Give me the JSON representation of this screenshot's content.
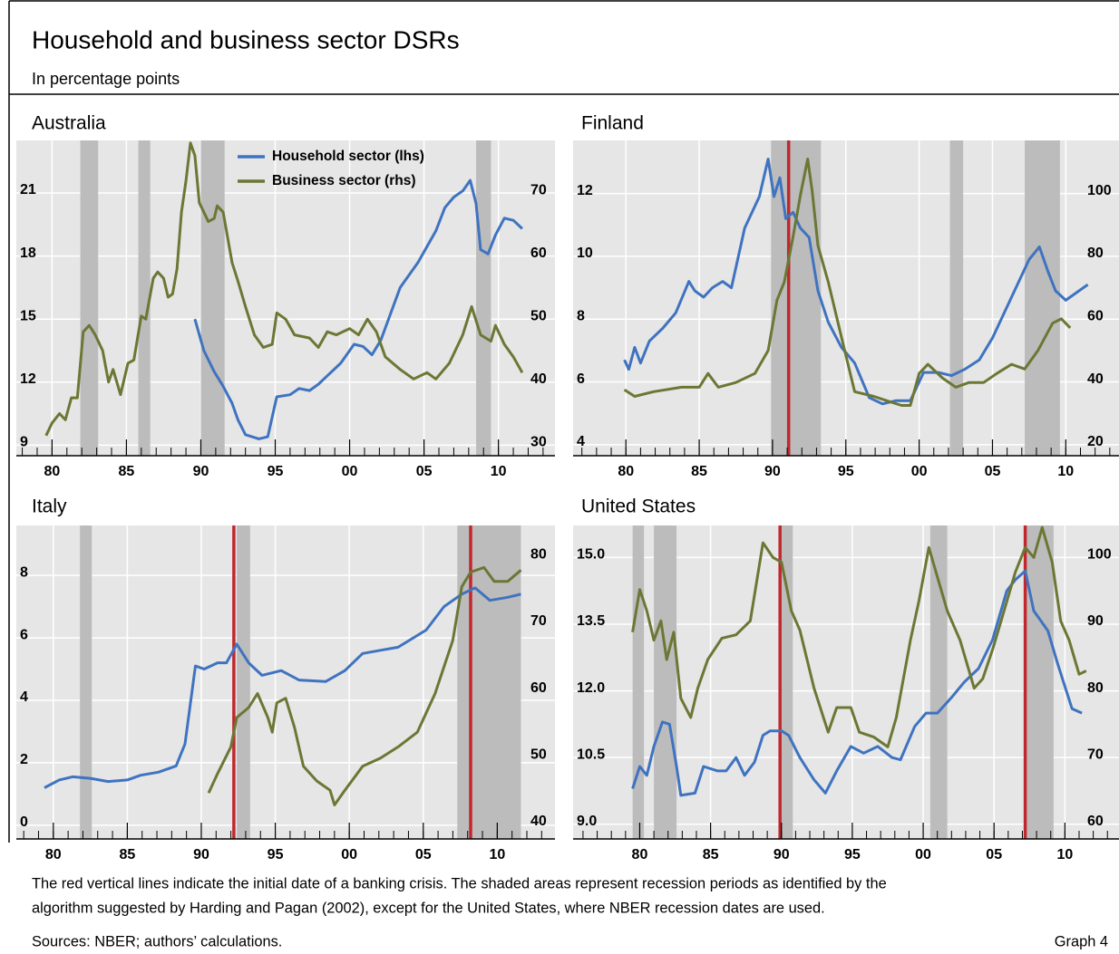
{
  "header": {
    "title": "Household and business sector DSRs",
    "subtitle": "In percentage points"
  },
  "footer": {
    "note_lines": [
      "The red vertical lines indicate the initial date of a banking crisis. The shaded areas represent recession periods as identified by the",
      "algorithm suggested by Harding and Pagan (2002), except for the United States, where NBER recession dates are used."
    ],
    "sources": "Sources: NBER; authors’ calculations.",
    "graph": "Graph 4"
  },
  "chart_data": [
    {
      "type": "line",
      "title": "Australia",
      "legend": "top",
      "grid": true,
      "xlim": [
        1977.6,
        2013.8
      ],
      "xticks": [
        {
          "value": 1980,
          "label": "80"
        },
        {
          "value": 1985,
          "label": "85"
        },
        {
          "value": 1990,
          "label": "90"
        },
        {
          "value": 1995,
          "label": "95"
        },
        {
          "value": 2000,
          "label": "00"
        },
        {
          "value": 2005,
          "label": "05"
        },
        {
          "value": 2010,
          "label": "10"
        }
      ],
      "ylim": [
        8.5,
        23.5
      ],
      "yticks": [
        9,
        12,
        15,
        18,
        21
      ],
      "y2lim": [
        28.3,
        78.4
      ],
      "y2ticks": [
        30,
        40,
        50,
        60,
        70
      ],
      "shading": [
        [
          1981.9,
          1983.1
        ],
        [
          1985.8,
          1986.6
        ],
        [
          1990,
          1991.6
        ],
        [
          2008.5,
          2009.5
        ]
      ],
      "crisis_dates": [],
      "series": [
        {
          "name": "Household sector (lhs)",
          "color": "#3f73c0",
          "x": [
            1989.6,
            1990.2,
            1990.9,
            1991.5,
            1992.1,
            1992.5,
            1993,
            1993.9,
            1994.5,
            1995.1,
            1996,
            1996.6,
            1997.3,
            1997.9,
            1998.5,
            1999.4,
            2000.3,
            2000.9,
            2001.5,
            2002.1,
            2003.4,
            2004.6,
            2005.8,
            2006.4,
            2007,
            2007.6,
            2008.1,
            2008.5,
            2008.8,
            2009.3,
            2009.8,
            2010.4,
            2011,
            2011.6
          ],
          "values": [
            15,
            13.5,
            12.5,
            11.8,
            11,
            10.2,
            9.5,
            9.3,
            9.4,
            11.3,
            11.4,
            11.7,
            11.6,
            11.9,
            12.3,
            12.9,
            13.8,
            13.7,
            13.3,
            14,
            16.5,
            17.7,
            19.2,
            20.3,
            20.8,
            21.1,
            21.6,
            20.5,
            18.3,
            18.1,
            19,
            19.8,
            19.7,
            19.3
          ]
        },
        {
          "name": "Business sector (rhs)",
          "color": "#6b7734",
          "axis": "y2",
          "x": [
            1979.6,
            1980,
            1980.5,
            1980.9,
            1981.3,
            1981.7,
            1982.1,
            1982.5,
            1982.9,
            1983.4,
            1983.8,
            1984.1,
            1984.6,
            1985.1,
            1985.5,
            1986,
            1986.3,
            1986.8,
            1987.1,
            1987.5,
            1987.8,
            1988.1,
            1988.4,
            1988.7,
            1989,
            1989.3,
            1989.6,
            1989.9,
            1990.2,
            1990.5,
            1990.9,
            1991.1,
            1991.5,
            1992.1,
            1992.5,
            1993,
            1993.6,
            1994.2,
            1994.8,
            1995.1,
            1995.7,
            1996.3,
            1997.3,
            1997.9,
            1998.5,
            1999.1,
            2000,
            2000.6,
            2001.2,
            2001.8,
            2002.4,
            2003.4,
            2004.3,
            2005.2,
            2005.8,
            2006.7,
            2007.6,
            2008.2,
            2008.8,
            2009.5,
            2009.8,
            2010.4,
            2011,
            2011.6
          ],
          "values": [
            31.5,
            33.5,
            35,
            34,
            37.5,
            37.5,
            48,
            49,
            47.5,
            45,
            40,
            42,
            38,
            43,
            43.5,
            50.5,
            50,
            56.5,
            57.5,
            56.5,
            53.5,
            54,
            58,
            67,
            72,
            78,
            76,
            68.5,
            67,
            65.5,
            66,
            68,
            67,
            59,
            56,
            52,
            47.5,
            45.5,
            46,
            51,
            50,
            47.5,
            47,
            45.5,
            48,
            47.5,
            48.5,
            47.5,
            50,
            48,
            44,
            42,
            40.5,
            41.5,
            40.5,
            43,
            47.5,
            52,
            47.5,
            46.5,
            49,
            46,
            44,
            41.5
          ]
        }
      ]
    },
    {
      "type": "line",
      "title": "Finland",
      "grid": true,
      "xlim": [
        1976.4,
        2014
      ],
      "xticks": [
        {
          "value": 1980,
          "label": "80"
        },
        {
          "value": 1985,
          "label": "85"
        },
        {
          "value": 1990,
          "label": "90"
        },
        {
          "value": 1995,
          "label": "95"
        },
        {
          "value": 2000,
          "label": "00"
        },
        {
          "value": 2005,
          "label": "05"
        },
        {
          "value": 2010,
          "label": "10"
        }
      ],
      "ylim": [
        3.65,
        13.69
      ],
      "yticks": [
        4,
        6,
        8,
        10,
        12
      ],
      "y2lim": [
        16.5,
        116.9
      ],
      "y2ticks": [
        20,
        40,
        60,
        80,
        100
      ],
      "shading": [
        [
          1989.9,
          1993.3
        ],
        [
          2002.1,
          2003
        ],
        [
          2007.2,
          2009.6
        ]
      ],
      "crisis_dates": [
        1991.1
      ],
      "series": [
        {
          "color": "#3f73c0",
          "x": [
            1979.9,
            1980.2,
            1980.6,
            1981,
            1981.6,
            1982.5,
            1983.4,
            1984.3,
            1984.7,
            1985.3,
            1985.9,
            1986.6,
            1987.2,
            1988.1,
            1989.1,
            1989.7,
            1990.1,
            1990.5,
            1990.9,
            1991.4,
            1991.9,
            1992.5,
            1993.1,
            1993.8,
            1994.7,
            1995.6,
            1996.6,
            1997.5,
            1998.4,
            1999.4,
            2000.3,
            2001.3,
            2002.2,
            2003.1,
            2004.1,
            2005,
            2006.3,
            2007.5,
            2008.2,
            2008.8,
            2009.3,
            2010,
            2010.9,
            2011.5
          ],
          "values": [
            6.7,
            6.4,
            7.1,
            6.6,
            7.3,
            7.7,
            8.2,
            9.2,
            8.9,
            8.7,
            9,
            9.2,
            9,
            10.9,
            11.9,
            13.1,
            11.9,
            12.5,
            11.2,
            11.4,
            10.9,
            10.6,
            8.9,
            7.9,
            7.1,
            6.6,
            5.5,
            5.3,
            5.4,
            5.4,
            6.3,
            6.3,
            6.2,
            6.4,
            6.7,
            7.4,
            8.7,
            9.9,
            10.3,
            9.5,
            8.9,
            8.6,
            8.9,
            9.1
          ]
        },
        {
          "color": "#6b7734",
          "axis": "y2",
          "x": [
            1979.9,
            1980.6,
            1981.9,
            1983.8,
            1985,
            1985.6,
            1986.3,
            1987.5,
            1988.8,
            1989.7,
            1990.3,
            1990.8,
            1991.4,
            1991.9,
            1992.4,
            1992.7,
            1993.1,
            1993.8,
            1994.7,
            1995.6,
            1996.9,
            1997.8,
            1998.8,
            1999.4,
            2000,
            2000.6,
            2001.6,
            2002.5,
            2003.4,
            2004.4,
            2005.3,
            2006.3,
            2007.2,
            2008.1,
            2009.1,
            2009.7,
            2010.3
          ],
          "values": [
            37.5,
            35.4,
            36.9,
            38.3,
            38.3,
            42.7,
            38.3,
            39.8,
            42.7,
            50,
            66,
            71.8,
            86.3,
            99.4,
            111,
            100.9,
            83.4,
            71.8,
            54.3,
            36.9,
            35.4,
            34,
            32.5,
            32.5,
            42.7,
            45.6,
            41.2,
            38.3,
            39.8,
            39.8,
            42.7,
            45.6,
            44.1,
            50,
            58.7,
            60.1,
            57.2
          ]
        }
      ]
    },
    {
      "type": "line",
      "title": "Italy",
      "grid": true,
      "xlim": [
        1977.5,
        2013.9
      ],
      "xticks": [
        {
          "value": 1980,
          "label": "80"
        },
        {
          "value": 1985,
          "label": "85"
        },
        {
          "value": 1990,
          "label": "90"
        },
        {
          "value": 1995,
          "label": "95"
        },
        {
          "value": 2000,
          "label": "00"
        },
        {
          "value": 2005,
          "label": "05"
        },
        {
          "value": 2010,
          "label": "10"
        }
      ],
      "ylim": [
        -0.44,
        9.6
      ],
      "yticks": [
        0,
        2,
        4,
        6,
        8
      ],
      "y2lim": [
        37.8,
        84.8
      ],
      "y2ticks": [
        40,
        50,
        60,
        70,
        80
      ],
      "shading": [
        [
          1981.8,
          1982.6
        ],
        [
          1992.4,
          1993.3
        ],
        [
          2007.3,
          2011.6
        ]
      ],
      "crisis_dates": [
        1992.2,
        2008.2
      ],
      "series": [
        {
          "color": "#3f73c0",
          "x": [
            1979.4,
            1980.4,
            1981.3,
            1982.5,
            1983.7,
            1985,
            1985.9,
            1987.1,
            1988.3,
            1988.9,
            1989.6,
            1990.2,
            1991.1,
            1991.7,
            1992.4,
            1993.2,
            1994.1,
            1995.4,
            1996.6,
            1998.4,
            1999.7,
            2000.9,
            2002.1,
            2003.3,
            2005.2,
            2006.4,
            2007.6,
            2008.5,
            2009.5,
            2010.7,
            2011.6
          ],
          "values": [
            1.2,
            1.45,
            1.55,
            1.5,
            1.4,
            1.45,
            1.6,
            1.7,
            1.9,
            2.6,
            5.1,
            5,
            5.2,
            5.2,
            5.8,
            5.2,
            4.8,
            4.95,
            4.65,
            4.6,
            4.95,
            5.5,
            5.6,
            5.7,
            6.25,
            7,
            7.4,
            7.6,
            7.2,
            7.3,
            7.4
          ]
        },
        {
          "color": "#6b7734",
          "axis": "y2",
          "x": [
            1990.5,
            1991.1,
            1992,
            1992.4,
            1993.2,
            1993.8,
            1994.5,
            1994.8,
            1995.1,
            1995.7,
            1996.3,
            1996.9,
            1997.8,
            1998.7,
            1999,
            1999.7,
            2000.9,
            2002.1,
            2003.3,
            2004.6,
            2005.8,
            2007,
            2007.6,
            2008.2,
            2009.1,
            2009.8,
            2010.7,
            2011.6
          ],
          "values": [
            44.7,
            47.6,
            51.6,
            56,
            57.5,
            59.6,
            56,
            53.8,
            58.2,
            58.9,
            54.5,
            48.7,
            46.5,
            45.1,
            42.9,
            45.1,
            48.7,
            49.9,
            51.6,
            53.8,
            59.6,
            67.6,
            75.6,
            77.8,
            78.5,
            76.4,
            76.4,
            78.1
          ]
        }
      ]
    },
    {
      "type": "line",
      "title": "United States",
      "grid": true,
      "xlim": [
        1975.3,
        2014.2
      ],
      "xticks": [
        {
          "value": 1980,
          "label": "80"
        },
        {
          "value": 1985,
          "label": "85"
        },
        {
          "value": 1990,
          "label": "90"
        },
        {
          "value": 1995,
          "label": "95"
        },
        {
          "value": 2000,
          "label": "00"
        },
        {
          "value": 2005,
          "label": "05"
        },
        {
          "value": 2010,
          "label": "10"
        }
      ],
      "ylim": [
        8.67,
        15.72
      ],
      "yticks": [
        {
          "value": 9,
          "label": "9.0"
        },
        10.5,
        {
          "value": 12,
          "label": "12.0"
        },
        13.5,
        {
          "value": 15,
          "label": "15.0"
        }
      ],
      "y2lim": [
        57.8,
        104.8
      ],
      "y2ticks": [
        60,
        70,
        80,
        90,
        100
      ],
      "shading": [
        [
          1979.5,
          1980.3
        ],
        [
          1981,
          1982.6
        ],
        [
          1990,
          1990.8
        ],
        [
          2000.5,
          2001.7
        ],
        [
          2007.3,
          2009.2
        ]
      ],
      "crisis_dates": [
        1989.9,
        2007.2
      ],
      "series": [
        {
          "color": "#3f73c0",
          "x": [
            1979.5,
            1980,
            1980.5,
            1981,
            1981.6,
            1982.1,
            1982.6,
            1982.9,
            1983.9,
            1984.5,
            1985.5,
            1986.1,
            1986.8,
            1987.4,
            1988.1,
            1988.7,
            1989.2,
            1990,
            1990.5,
            1991.3,
            1992.3,
            1993.1,
            1993.9,
            1994.9,
            1995.8,
            1996.8,
            1997.8,
            1998.4,
            1999.4,
            2000.2,
            2001,
            2002,
            2002.9,
            2003.9,
            2004.9,
            2005.9,
            2006.5,
            2007.2,
            2007.8,
            2008.8,
            2009.5,
            2010.5,
            2011.2
          ],
          "values": [
            9.8,
            10.3,
            10.1,
            10.75,
            11.3,
            11.25,
            10.3,
            9.65,
            9.7,
            10.3,
            10.2,
            10.2,
            10.5,
            10.1,
            10.4,
            11,
            11.1,
            11.1,
            11,
            10.5,
            10,
            9.7,
            10.2,
            10.75,
            10.6,
            10.75,
            10.5,
            10.45,
            11.2,
            11.5,
            11.5,
            11.85,
            12.2,
            12.5,
            13.15,
            14.25,
            14.5,
            14.7,
            13.8,
            13.35,
            12.6,
            11.6,
            11.5
          ]
        },
        {
          "color": "#6b7734",
          "axis": "y2",
          "x": [
            1979.5,
            1980,
            1980.5,
            1981,
            1981.5,
            1981.9,
            1982.4,
            1982.9,
            1983.6,
            1984.1,
            1984.8,
            1985.8,
            1986.8,
            1987.8,
            1988.7,
            1989.4,
            1990,
            1990.7,
            1991.3,
            1992.3,
            1993.3,
            1993.9,
            1994.9,
            1995.5,
            1996.5,
            1997.5,
            1998.1,
            1999.1,
            1999.7,
            2000.4,
            2001,
            2001.7,
            2002.6,
            2003.6,
            2004.2,
            2004.9,
            2005.5,
            2006.5,
            2007.2,
            2007.8,
            2008.4,
            2009.1,
            2009.7,
            2010.3,
            2011,
            2011.5
          ],
          "values": [
            88.8,
            95.2,
            92,
            87.6,
            90.5,
            84.7,
            88.8,
            78.9,
            76,
            80.4,
            84.7,
            87.9,
            88.4,
            90.5,
            102.2,
            100,
            99.3,
            92,
            89.1,
            80.4,
            73.8,
            77.5,
            77.5,
            73.8,
            73.1,
            71.6,
            76,
            87.6,
            93.5,
            101.5,
            97.1,
            92,
            87.6,
            80.4,
            81.8,
            86.2,
            90.5,
            97.8,
            101.5,
            100,
            104.5,
            99.3,
            90.5,
            87.6,
            82.5,
            83
          ]
        }
      ]
    }
  ]
}
